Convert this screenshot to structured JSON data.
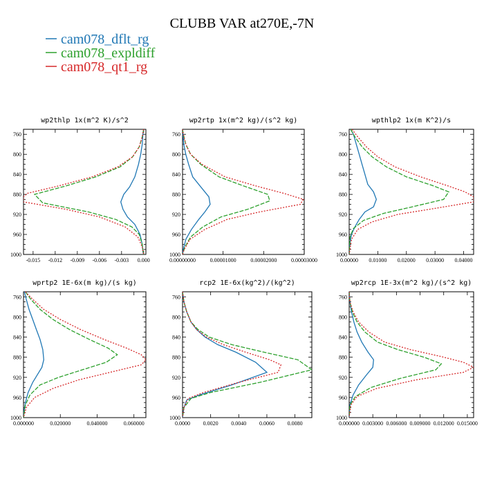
{
  "figure": {
    "title": "CLUBB VAR at270E,-7N",
    "legend": [
      {
        "name": "cam078_dflt_rg",
        "color": "#1f77b4"
      },
      {
        "name": "cam078_expldiff",
        "color": "#2ca02c"
      },
      {
        "name": "cam078_qt1_rg",
        "color": "#d62728"
      }
    ]
  },
  "chart_data": [
    {
      "type": "line",
      "title": "wp2thlp   1x(m^2 K)/s^2",
      "y_ticks": [
        "760",
        "800",
        "840",
        "880",
        "920",
        "960",
        "1000"
      ],
      "ylim": [
        1000,
        750
      ],
      "x_ticks": [
        "-0.015",
        "-0.012",
        "-0.009",
        "-0.006",
        "-0.003",
        "0.000"
      ],
      "x_tick_values": [
        -0.015,
        -0.012,
        -0.009,
        -0.006,
        -0.003,
        0.0
      ],
      "xlim": [
        -0.0163,
        0.0003
      ],
      "series": [
        {
          "name": "cam078_dflt_rg",
          "color": "#1f77b4",
          "dash": "",
          "x": [
            0.0,
            -0.0001,
            -0.0002,
            -0.0004,
            -0.0007,
            -0.0012,
            -0.0019,
            -0.0027,
            -0.0031,
            -0.0028,
            -0.0022,
            -0.0012,
            -0.0005,
            -0.0002,
            -0.0001,
            0.0
          ],
          "y": [
            750,
            760,
            780,
            800,
            820,
            845,
            865,
            880,
            895,
            910,
            925,
            940,
            960,
            980,
            995,
            1000
          ]
        },
        {
          "name": "cam078_expldiff",
          "color": "#2ca02c",
          "dash": "6,2",
          "x": [
            0.0,
            -0.0002,
            -0.0006,
            -0.0015,
            -0.0032,
            -0.0065,
            -0.0105,
            -0.0148,
            -0.0137,
            -0.0075,
            -0.0038,
            -0.0016,
            -0.0006,
            -0.0002,
            0.0
          ],
          "y": [
            750,
            765,
            785,
            805,
            825,
            845,
            863,
            880,
            897,
            915,
            930,
            945,
            960,
            980,
            1000
          ]
        },
        {
          "name": "cam078_qt1_rg",
          "color": "#d62728",
          "dash": "2,2",
          "x": [
            0.0,
            -0.0002,
            -0.0006,
            -0.0015,
            -0.0035,
            -0.007,
            -0.0115,
            -0.0158,
            -0.0163,
            -0.0163,
            -0.0105,
            -0.006,
            -0.0025,
            -0.0008,
            -0.0002,
            0.0
          ],
          "y": [
            750,
            765,
            785,
            805,
            825,
            845,
            863,
            878,
            885,
            895,
            910,
            925,
            945,
            965,
            985,
            1000
          ]
        }
      ]
    },
    {
      "type": "line",
      "title": "wp2rtp   1x(m^2 kg)/(s^2 kg)",
      "y_ticks": [
        "760",
        "800",
        "840",
        "880",
        "920",
        "960",
        "1000"
      ],
      "ylim": [
        1000,
        750
      ],
      "x_ticks": [
        "0.00000000",
        "0.00001000",
        "0.00002000",
        "0.00003000"
      ],
      "x_tick_values": [
        0,
        1e-05,
        2e-05,
        3e-05
      ],
      "xlim": [
        0,
        3e-05
      ],
      "series": [
        {
          "name": "cam078_dflt_rg",
          "color": "#1f77b4",
          "dash": "",
          "x": [
            0,
            1e-07,
            3e-07,
            8e-07,
            1.5e-06,
            2.5e-06,
            4.5e-06,
            6.5e-06,
            6.8e-06,
            5.5e-06,
            4e-06,
            2.2e-06,
            8e-07,
            2e-07,
            0
          ],
          "y": [
            750,
            760,
            780,
            800,
            820,
            845,
            865,
            885,
            900,
            915,
            930,
            950,
            970,
            990,
            1000
          ]
        },
        {
          "name": "cam078_expldiff",
          "color": "#2ca02c",
          "dash": "6,2",
          "x": [
            0,
            2e-07,
            8e-07,
            2e-06,
            4.5e-06,
            9e-06,
            1.5e-05,
            2.1e-05,
            2.15e-05,
            1.6e-05,
            9.5e-06,
            5e-06,
            2e-06,
            6e-07,
            0
          ],
          "y": [
            750,
            760,
            780,
            800,
            820,
            845,
            863,
            880,
            893,
            910,
            925,
            945,
            965,
            985,
            1000
          ]
        },
        {
          "name": "cam078_qt1_rg",
          "color": "#d62728",
          "dash": "2,2",
          "x": [
            0,
            2e-07,
            8e-07,
            2e-06,
            4.8e-06,
            1.05e-05,
            1.8e-05,
            2.5e-05,
            2.98e-05,
            2.9e-05,
            1.9e-05,
            1.1e-05,
            5.5e-06,
            1.8e-06,
            4e-07,
            0
          ],
          "y": [
            750,
            760,
            780,
            800,
            820,
            845,
            863,
            878,
            890,
            900,
            915,
            930,
            950,
            970,
            990,
            1000
          ]
        }
      ]
    },
    {
      "type": "line",
      "title": "wpthlp2   1x(m K^2)/s",
      "y_ticks": [
        "760",
        "800",
        "840",
        "880",
        "920",
        "960",
        "1000"
      ],
      "ylim": [
        1000,
        750
      ],
      "x_ticks": [
        "0.00000",
        "0.01000",
        "0.02000",
        "0.03000",
        "0.04000"
      ],
      "x_tick_values": [
        0,
        0.01,
        0.02,
        0.03,
        0.04
      ],
      "xlim": [
        0,
        0.0435
      ],
      "series": [
        {
          "name": "cam078_dflt_rg",
          "color": "#1f77b4",
          "dash": "",
          "x": [
            0.0005,
            0.0015,
            0.0025,
            0.0035,
            0.0045,
            0.0055,
            0.0065,
            0.0085,
            0.0095,
            0.0085,
            0.0055,
            0.0035,
            0.002,
            0.0008,
            0.0002,
            0
          ],
          "y": [
            750,
            760,
            780,
            800,
            820,
            840,
            860,
            875,
            890,
            905,
            915,
            930,
            945,
            960,
            980,
            1000
          ]
        },
        {
          "name": "cam078_expldiff",
          "color": "#2ca02c",
          "dash": "6,2",
          "x": [
            0.0005,
            0.002,
            0.0045,
            0.008,
            0.013,
            0.02,
            0.029,
            0.0348,
            0.033,
            0.022,
            0.012,
            0.005,
            0.0015,
            0.0003,
            0
          ],
          "y": [
            750,
            765,
            785,
            805,
            825,
            845,
            862,
            875,
            890,
            905,
            918,
            932,
            948,
            965,
            1000
          ]
        },
        {
          "name": "cam078_qt1_rg",
          "color": "#d62728",
          "dash": "2,2",
          "x": [
            0.001,
            0.003,
            0.006,
            0.01,
            0.016,
            0.025,
            0.034,
            0.0405,
            0.0435,
            0.0435,
            0.03,
            0.017,
            0.008,
            0.003,
            0.0008,
            0
          ],
          "y": [
            750,
            765,
            785,
            805,
            825,
            845,
            862,
            875,
            885,
            895,
            908,
            920,
            935,
            950,
            970,
            1000
          ]
        }
      ]
    },
    {
      "type": "line",
      "title": "wprtp2   1E-6x(m kg)/(s kg)",
      "y_ticks": [
        "760",
        "800",
        "840",
        "880",
        "920",
        "960",
        "1000"
      ],
      "ylim": [
        1000,
        750
      ],
      "x_ticks": [
        "0.000000",
        "0.020000",
        "0.040000",
        "0.060000"
      ],
      "x_tick_values": [
        0,
        0.02,
        0.04,
        0.06
      ],
      "xlim": [
        0,
        0.0665
      ],
      "series": [
        {
          "name": "cam078_dflt_rg",
          "color": "#1f77b4",
          "dash": "",
          "x": [
            0.0005,
            0.0015,
            0.003,
            0.005,
            0.007,
            0.009,
            0.0105,
            0.011,
            0.01,
            0.0075,
            0.005,
            0.0025,
            0.001,
            0.0002,
            0
          ],
          "y": [
            750,
            765,
            785,
            805,
            825,
            845,
            865,
            885,
            900,
            915,
            930,
            950,
            970,
            990,
            1000
          ]
        },
        {
          "name": "cam078_expldiff",
          "color": "#2ca02c",
          "dash": "6,2",
          "x": [
            0.001,
            0.004,
            0.009,
            0.016,
            0.025,
            0.036,
            0.046,
            0.051,
            0.045,
            0.032,
            0.019,
            0.009,
            0.0035,
            0.001,
            0
          ],
          "y": [
            750,
            765,
            785,
            805,
            825,
            845,
            862,
            875,
            890,
            905,
            920,
            935,
            955,
            975,
            1000
          ]
        },
        {
          "name": "cam078_qt1_rg",
          "color": "#d62728",
          "dash": "2,2",
          "x": [
            0.001,
            0.005,
            0.011,
            0.02,
            0.031,
            0.044,
            0.056,
            0.064,
            0.0665,
            0.064,
            0.047,
            0.03,
            0.016,
            0.006,
            0.0015,
            0
          ],
          "y": [
            750,
            765,
            785,
            805,
            825,
            845,
            862,
            875,
            885,
            895,
            910,
            925,
            942,
            960,
            980,
            1000
          ]
        }
      ]
    },
    {
      "type": "line",
      "title": "rcp2   1E-6x(kg^2)/(kg^2)",
      "y_ticks": [
        "760",
        "800",
        "840",
        "880",
        "920",
        "960",
        "1000"
      ],
      "ylim": [
        1000,
        750
      ],
      "x_ticks": [
        "0.0000",
        "0.0020",
        "0.0040",
        "0.0060",
        "0.0080"
      ],
      "x_tick_values": [
        0,
        0.002,
        0.004,
        0.006,
        0.008
      ],
      "xlim": [
        0,
        0.0092
      ],
      "series": [
        {
          "name": "cam078_dflt_rg",
          "color": "#1f77b4",
          "dash": "",
          "x": [
            0,
            0.0001,
            0.0003,
            0.0006,
            0.001,
            0.0016,
            0.0025,
            0.0038,
            0.0052,
            0.006,
            0.0035,
            0.0012,
            0.0003,
            0.0001,
            0
          ],
          "y": [
            750,
            770,
            790,
            810,
            825,
            840,
            855,
            870,
            890,
            910,
            935,
            955,
            965,
            980,
            1000
          ]
        },
        {
          "name": "cam078_expldiff",
          "color": "#2ca02c",
          "dash": "6,2",
          "x": [
            0,
            0.0001,
            0.0003,
            0.0006,
            0.0011,
            0.0019,
            0.0035,
            0.0058,
            0.0082,
            0.0092,
            0.0055,
            0.002,
            0.0006,
            0.0001,
            0
          ],
          "y": [
            750,
            770,
            790,
            810,
            825,
            840,
            855,
            870,
            885,
            905,
            930,
            950,
            962,
            980,
            1000
          ]
        },
        {
          "name": "cam078_qt1_rg",
          "color": "#d62728",
          "dash": "2,2",
          "x": [
            0,
            0.0001,
            0.0003,
            0.0006,
            0.001,
            0.0017,
            0.0029,
            0.0045,
            0.0062,
            0.007,
            0.0068,
            0.004,
            0.0015,
            0.0004,
            0.0001,
            0
          ],
          "y": [
            750,
            770,
            790,
            810,
            825,
            840,
            855,
            870,
            885,
            895,
            910,
            930,
            950,
            962,
            980,
            1000
          ]
        }
      ]
    },
    {
      "type": "line",
      "title": "wp2rcp   1E-3x(m^2 kg)/(s^2 kg)",
      "y_ticks": [
        "760",
        "800",
        "840",
        "880",
        "920",
        "960",
        "1000"
      ],
      "ylim": [
        1000,
        750
      ],
      "x_ticks": [
        "0.000000",
        "0.003000",
        "0.006000",
        "0.009000",
        "0.012000",
        "0.015000"
      ],
      "x_tick_values": [
        0,
        0.003,
        0.006,
        0.009,
        0.012,
        0.015
      ],
      "xlim": [
        0,
        0.0158
      ],
      "series": [
        {
          "name": "cam078_dflt_rg",
          "color": "#1f77b4",
          "dash": "",
          "x": [
            0,
            0.0001,
            0.0003,
            0.0006,
            0.001,
            0.0016,
            0.0024,
            0.0031,
            0.003,
            0.0022,
            0.0012,
            0.0005,
            0.0001,
            0
          ],
          "y": [
            750,
            770,
            790,
            810,
            830,
            850,
            870,
            885,
            900,
            915,
            935,
            955,
            975,
            1000
          ]
        },
        {
          "name": "cam078_expldiff",
          "color": "#2ca02c",
          "dash": "6,2",
          "x": [
            0,
            0.0001,
            0.0004,
            0.001,
            0.002,
            0.0036,
            0.0062,
            0.0095,
            0.0117,
            0.011,
            0.0065,
            0.0028,
            0.0008,
            0.0001,
            0
          ],
          "y": [
            750,
            770,
            790,
            810,
            830,
            850,
            865,
            880,
            893,
            905,
            922,
            940,
            958,
            975,
            1000
          ]
        },
        {
          "name": "cam078_qt1_rg",
          "color": "#d62728",
          "dash": "2,2",
          "x": [
            0,
            0.0001,
            0.0005,
            0.0012,
            0.0025,
            0.0045,
            0.0078,
            0.0115,
            0.0145,
            0.0158,
            0.0145,
            0.0085,
            0.0035,
            0.001,
            0.0002,
            0
          ],
          "y": [
            750,
            770,
            790,
            810,
            830,
            850,
            865,
            878,
            890,
            900,
            910,
            925,
            942,
            958,
            975,
            1000
          ]
        }
      ]
    }
  ]
}
